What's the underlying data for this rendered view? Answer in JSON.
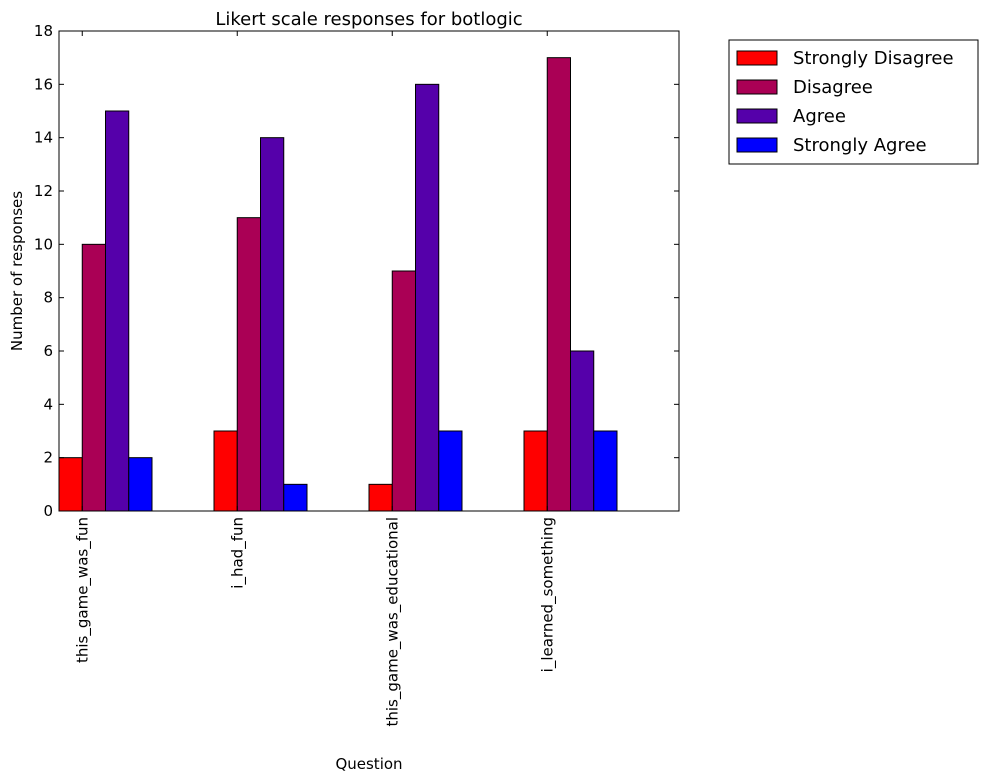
{
  "chart_data": {
    "type": "bar",
    "title": "Likert scale responses for botlogic",
    "xlabel": "Question",
    "ylabel": "Number of responses",
    "ylim": [
      0,
      18
    ],
    "yticks": [
      0,
      2,
      4,
      6,
      8,
      10,
      12,
      14,
      16,
      18
    ],
    "categories": [
      "this_game_was_fun",
      "i_had_fun",
      "this_game_was_educational",
      "i_learned_something"
    ],
    "series": [
      {
        "name": "Strongly Disagree",
        "color": "#ff0000",
        "values": [
          2,
          3,
          1,
          3
        ]
      },
      {
        "name": "Disagree",
        "color": "#aa0055",
        "values": [
          10,
          11,
          9,
          17
        ]
      },
      {
        "name": "Agree",
        "color": "#5500aa",
        "values": [
          15,
          14,
          16,
          6
        ]
      },
      {
        "name": "Strongly Agree",
        "color": "#0000ff",
        "values": [
          2,
          1,
          3,
          3
        ]
      }
    ],
    "legend_position": "outside-top-right",
    "grid": false
  }
}
